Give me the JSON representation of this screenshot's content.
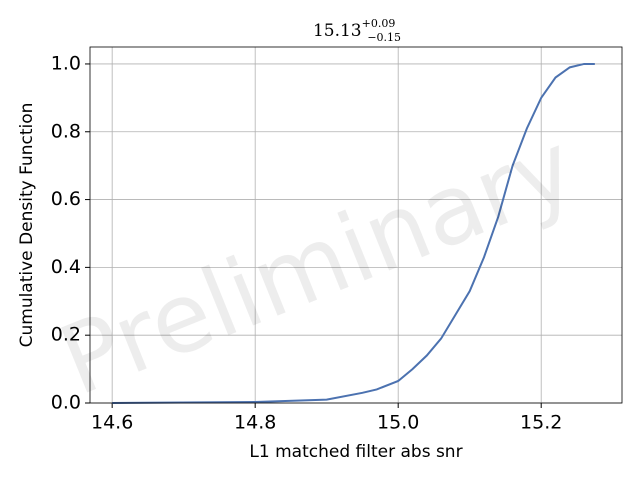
{
  "chart_data": {
    "type": "line",
    "title": {
      "value": "15.13",
      "upper": "+0.09",
      "lower": "−0.15"
    },
    "xlabel": "L1 matched filter abs snr",
    "ylabel": "Cumulative Density Function",
    "watermark": "Preliminary",
    "x": [
      14.6,
      14.8,
      14.9,
      14.95,
      14.97,
      15.0,
      15.02,
      15.04,
      15.06,
      15.08,
      15.1,
      15.12,
      15.14,
      15.16,
      15.18,
      15.2,
      15.22,
      15.24,
      15.26,
      15.275
    ],
    "series": [
      {
        "name": "CDF",
        "color": "#4c72b0",
        "values": [
          0,
          0.003,
          0.01,
          0.03,
          0.04,
          0.065,
          0.1,
          0.14,
          0.19,
          0.26,
          0.33,
          0.43,
          0.55,
          0.7,
          0.81,
          0.9,
          0.96,
          0.99,
          1.0,
          1.0
        ]
      }
    ],
    "xlim": [
      14.569,
      15.313
    ],
    "xticks": [
      14.6,
      14.8,
      15.0,
      15.2
    ],
    "ylim": [
      0,
      1.05
    ],
    "yticks": [
      0.0,
      0.2,
      0.4,
      0.6,
      0.8,
      1.0
    ],
    "grid": true
  }
}
